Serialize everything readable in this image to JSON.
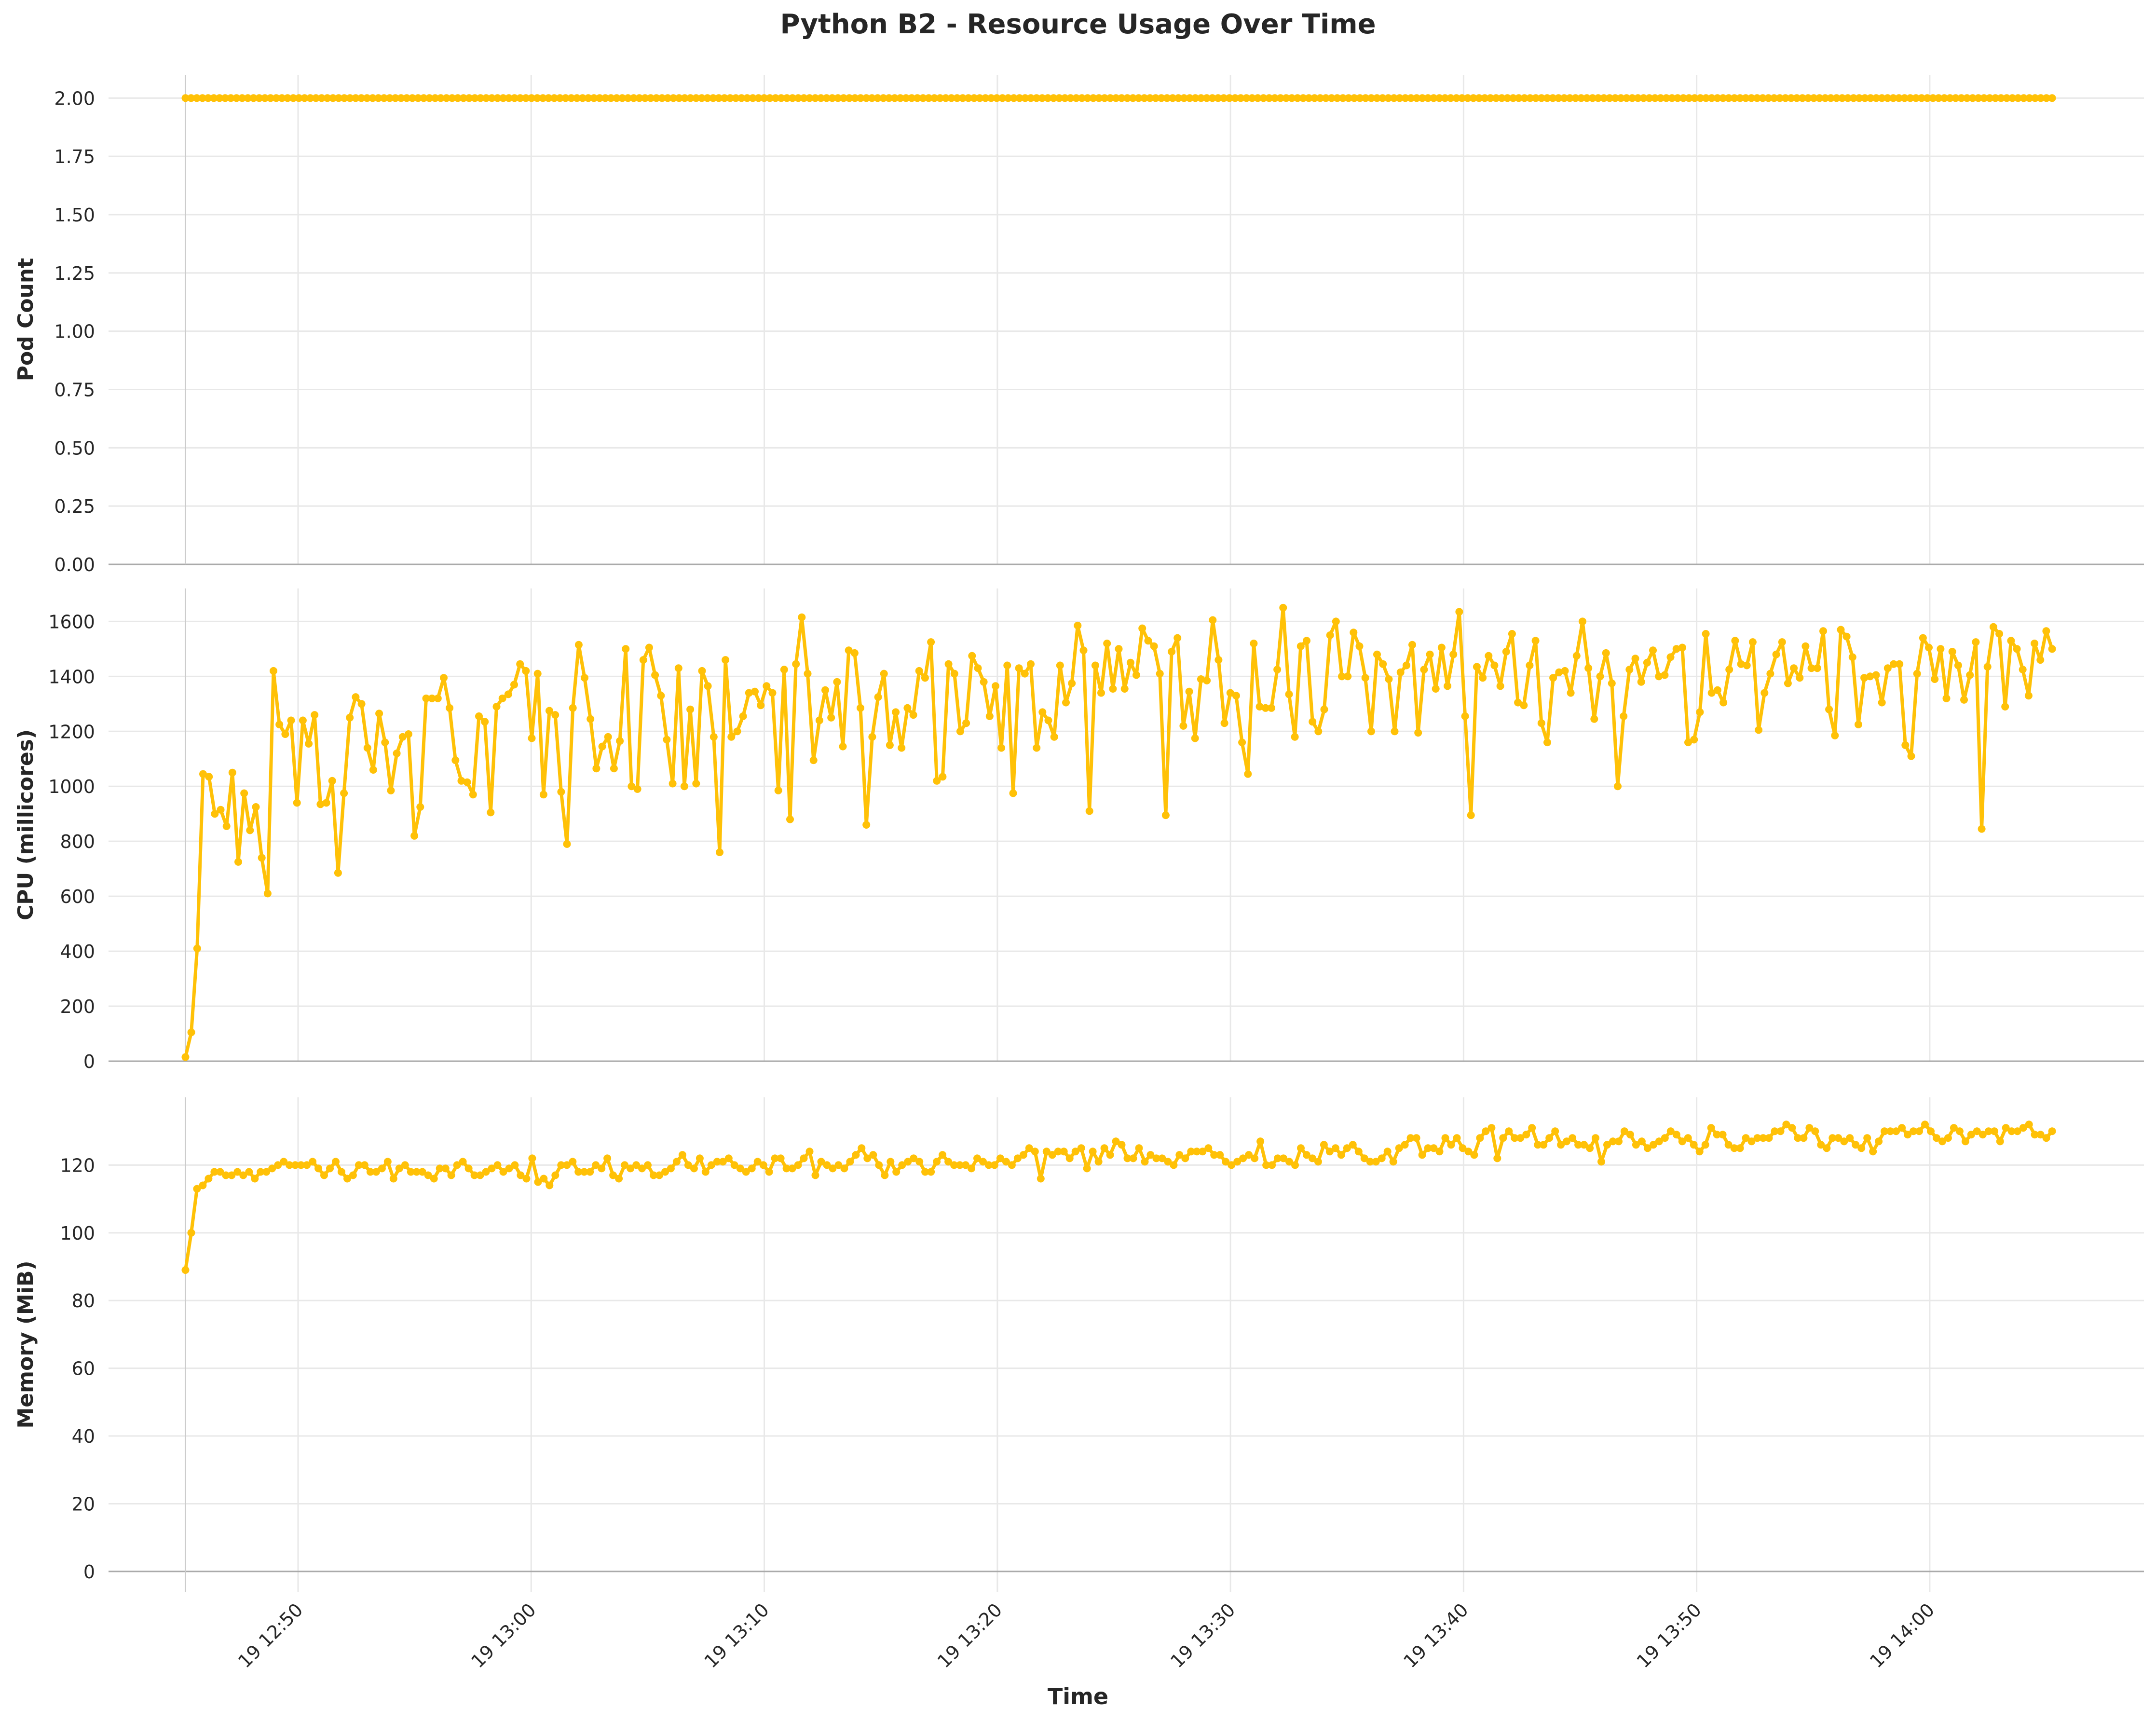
{
  "chart_data": {
    "type": "line",
    "title": "Python B2 - Resource Usage Over Time",
    "xlabel": "Time",
    "x_start": "19 12:45:10",
    "x_end": "19 14:05:15",
    "x_ticks": [
      "19 12:50",
      "19 13:00",
      "19 13:10",
      "19 13:20",
      "19 13:30",
      "19 13:40",
      "19 13:50",
      "19 14:00"
    ],
    "x_tick_minutes": [
      50,
      60,
      70,
      80,
      90,
      100,
      110,
      120
    ],
    "grid": true,
    "color": "#FFC107",
    "panels": [
      {
        "ylabel": "Pod Count",
        "ylim": [
          0,
          2.1
        ],
        "yticks": [
          0.0,
          0.25,
          0.5,
          0.75,
          1.0,
          1.25,
          1.5,
          1.75,
          2.0
        ],
        "ytick_labels": [
          "0.00",
          "0.25",
          "0.50",
          "0.75",
          "1.00",
          "1.25",
          "1.50",
          "1.75",
          "2.00"
        ],
        "series": {
          "constant": 2.0
        }
      },
      {
        "ylabel": "CPU (millicores)",
        "ylim": [
          0,
          1720
        ],
        "yticks": [
          0,
          200,
          400,
          600,
          800,
          1000,
          1200,
          1400,
          1600
        ],
        "ytick_labels": [
          "0",
          "200",
          "400",
          "600",
          "800",
          "1000",
          "1200",
          "1400",
          "1600"
        ],
        "series": {
          "values": [
            15,
            105,
            410,
            1045,
            1035,
            900,
            915,
            855,
            1050,
            725,
            975,
            840,
            925,
            740,
            610,
            1420,
            1225,
            1190,
            1240,
            940,
            1240,
            1155,
            1260,
            935,
            940,
            1020,
            685,
            975,
            1250,
            1325,
            1300,
            1140,
            1060,
            1265,
            1160,
            985,
            1120,
            1180,
            1190,
            820,
            925,
            1320,
            1320,
            1320,
            1395,
            1285,
            1095,
            1020,
            1015,
            970,
            1255,
            1235,
            905,
            1290,
            1320,
            1335,
            1370,
            1445,
            1420,
            1175,
            1410,
            970,
            1275,
            1260,
            980,
            790,
            1285,
            1515,
            1395,
            1245,
            1065,
            1145,
            1180,
            1065,
            1165,
            1500,
            1000,
            990,
            1460,
            1505,
            1405,
            1330,
            1170,
            1010,
            1430,
            1000,
            1280,
            1010,
            1420,
            1365,
            1180,
            760,
            1460,
            1180,
            1200,
            1255,
            1340,
            1345,
            1295,
            1365,
            1340,
            985,
            1425,
            880,
            1445,
            1615,
            1410,
            1095,
            1240,
            1350,
            1250,
            1380,
            1145,
            1495,
            1485,
            1285,
            860,
            1180,
            1325,
            1410,
            1150,
            1270,
            1140,
            1285,
            1260,
            1420,
            1395,
            1525,
            1020,
            1035,
            1445,
            1410,
            1200,
            1230,
            1475,
            1430,
            1380,
            1255,
            1365,
            1140,
            1440,
            975,
            1430,
            1410,
            1445,
            1140,
            1270,
            1240,
            1180,
            1440,
            1305,
            1375,
            1585,
            1495,
            910,
            1440,
            1340,
            1520,
            1355,
            1500,
            1355,
            1450,
            1405,
            1575,
            1530,
            1510,
            1410,
            895,
            1490,
            1540,
            1220,
            1345,
            1175,
            1390,
            1385,
            1605,
            1460,
            1230,
            1340,
            1330,
            1160,
            1045,
            1520,
            1290,
            1285,
            1285,
            1425,
            1650,
            1335,
            1180,
            1510,
            1530,
            1235,
            1200,
            1280,
            1550,
            1600,
            1400,
            1400,
            1560,
            1510,
            1395,
            1200,
            1480,
            1445,
            1390,
            1200,
            1415,
            1440,
            1515,
            1195,
            1425,
            1480,
            1355,
            1505,
            1365,
            1480,
            1635,
            1255,
            895,
            1435,
            1395,
            1475,
            1440,
            1365,
            1490,
            1555,
            1305,
            1295,
            1440,
            1530,
            1230,
            1160,
            1395,
            1415,
            1420,
            1340,
            1475,
            1600,
            1430,
            1245,
            1400,
            1485,
            1375,
            1000,
            1255,
            1425,
            1465,
            1380,
            1450,
            1495,
            1400,
            1405,
            1470,
            1500,
            1505,
            1160,
            1170,
            1270,
            1555,
            1340,
            1350,
            1305,
            1425,
            1530,
            1445,
            1440,
            1525,
            1205,
            1340,
            1410,
            1480,
            1525,
            1375,
            1430,
            1395,
            1510,
            1430,
            1430,
            1565,
            1280,
            1185,
            1570,
            1545,
            1470,
            1225,
            1395,
            1400,
            1405,
            1305,
            1430,
            1445,
            1445,
            1150,
            1110,
            1410,
            1540,
            1505,
            1390,
            1500,
            1320,
            1490,
            1440,
            1315,
            1405,
            1525,
            845,
            1435,
            1580,
            1555,
            1290,
            1530,
            1500,
            1425,
            1330,
            1520,
            1460,
            1565,
            1500
          ]
        }
      },
      {
        "ylabel": "Memory (MiB)",
        "ylim": [
          -6,
          140
        ],
        "yticks": [
          0,
          20,
          40,
          60,
          80,
          100,
          120
        ],
        "ytick_labels": [
          "0",
          "20",
          "40",
          "60",
          "80",
          "100",
          "120"
        ],
        "series": {
          "values": [
            89,
            100,
            113,
            114,
            116,
            118,
            118,
            117,
            117,
            118,
            117,
            118,
            116,
            118,
            118,
            119,
            120,
            121,
            120,
            120,
            120,
            120,
            121,
            119,
            117,
            119,
            121,
            118,
            116,
            117,
            120,
            120,
            118,
            118,
            119,
            121,
            116,
            119,
            120,
            118,
            118,
            118,
            117,
            116,
            119,
            119,
            117,
            120,
            121,
            119,
            117,
            117,
            118,
            119,
            120,
            118,
            119,
            120,
            117,
            116,
            122,
            115,
            116,
            114,
            117,
            120,
            120,
            121,
            118,
            118,
            118,
            120,
            119,
            122,
            117,
            116,
            120,
            119,
            120,
            119,
            120,
            117,
            117,
            118,
            119,
            121,
            123,
            120,
            119,
            122,
            118,
            120,
            121,
            121,
            122,
            120,
            119,
            118,
            119,
            121,
            120,
            118,
            122,
            122,
            119,
            119,
            120,
            122,
            124,
            117,
            121,
            120,
            119,
            120,
            119,
            121,
            123,
            125,
            122,
            123,
            120,
            117,
            121,
            118,
            120,
            121,
            122,
            121,
            118,
            118,
            121,
            123,
            121,
            120,
            120,
            120,
            119,
            122,
            121,
            120,
            120,
            122,
            121,
            120,
            122,
            123,
            125,
            124,
            116,
            124,
            123,
            124,
            124,
            122,
            124,
            125,
            119,
            124,
            121,
            125,
            123,
            127,
            126,
            122,
            122,
            125,
            121,
            123,
            122,
            122,
            121,
            120,
            123,
            122,
            124,
            124,
            124,
            125,
            123,
            123,
            121,
            120,
            121,
            122,
            123,
            122,
            127,
            120,
            120,
            122,
            122,
            121,
            120,
            125,
            123,
            122,
            121,
            126,
            124,
            125,
            123,
            125,
            126,
            124,
            122,
            121,
            121,
            122,
            124,
            121,
            125,
            126,
            128,
            128,
            123,
            125,
            125,
            124,
            128,
            126,
            128,
            125,
            124,
            123,
            128,
            130,
            131,
            122,
            128,
            130,
            128,
            128,
            129,
            131,
            126,
            126,
            128,
            130,
            126,
            127,
            128,
            126,
            126,
            125,
            128,
            121,
            126,
            127,
            127,
            130,
            129,
            126,
            127,
            125,
            126,
            127,
            128,
            130,
            129,
            127,
            128,
            126,
            124,
            126,
            131,
            129,
            129,
            126,
            125,
            125,
            128,
            127,
            128,
            128,
            128,
            130,
            130,
            132,
            131,
            128,
            128,
            131,
            130,
            126,
            125,
            128,
            128,
            127,
            128,
            126,
            125,
            128,
            124,
            127,
            130,
            130,
            130,
            131,
            129,
            130,
            130,
            132,
            130,
            128,
            127,
            128,
            131,
            130,
            127,
            129,
            130,
            129,
            130,
            130,
            127,
            131,
            130,
            130,
            131,
            132,
            129,
            129,
            128,
            130
          ]
        }
      }
    ]
  }
}
